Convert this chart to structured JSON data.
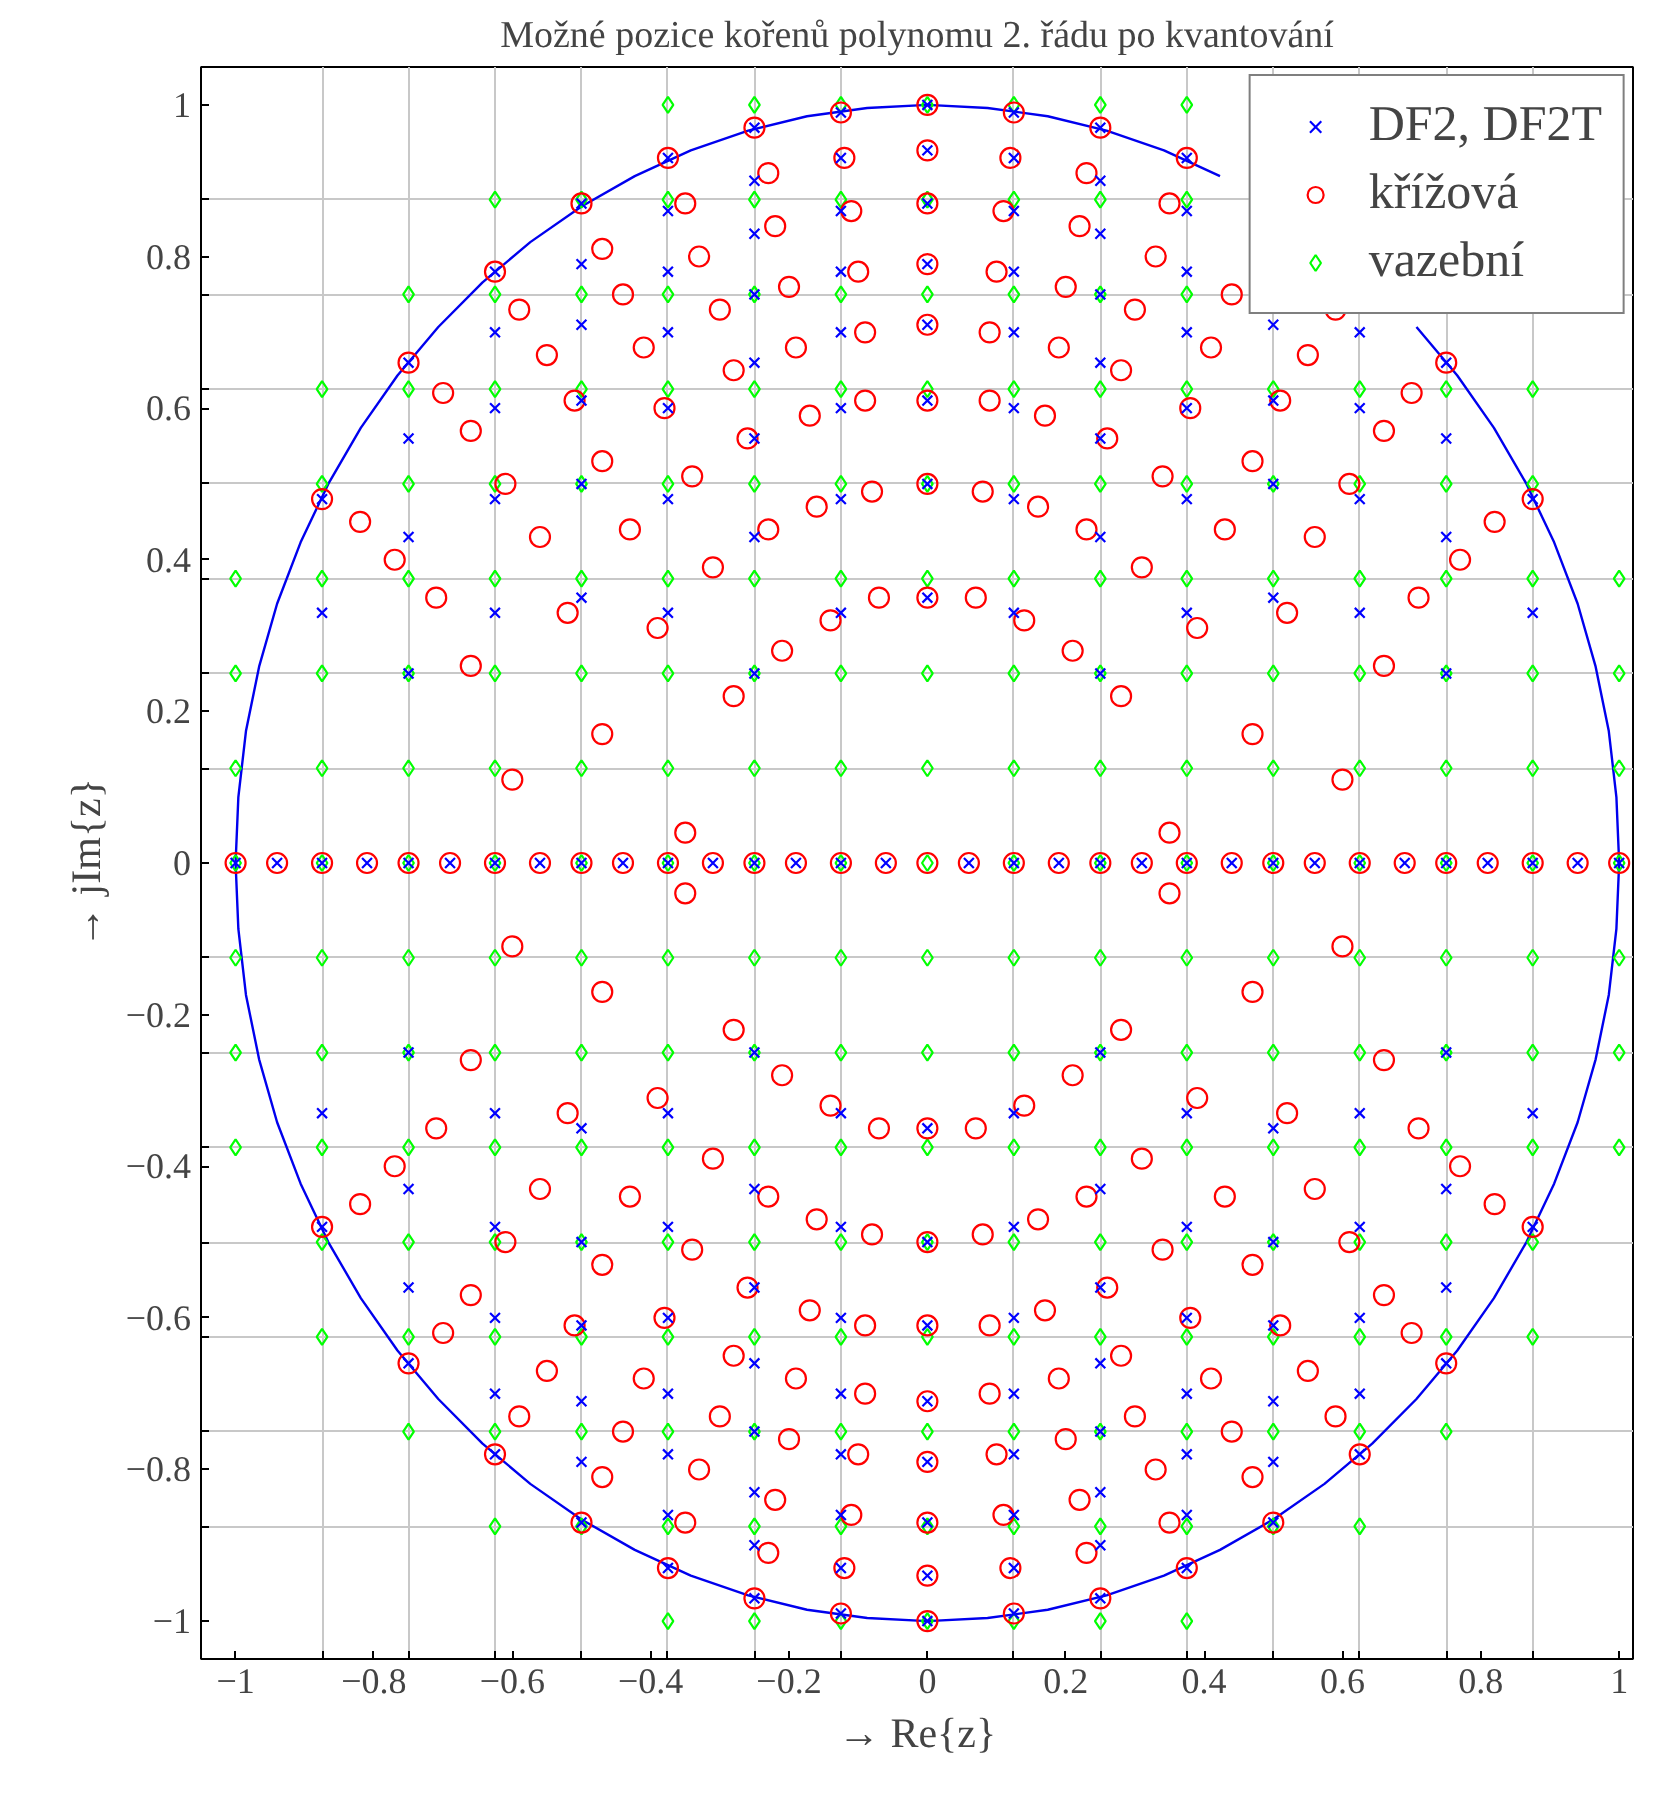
{
  "chart_data": {
    "type": "scatter",
    "title": "Možné pozice kořenů polynomu 2. řádu po kvantování",
    "xlabel": "→ Re{z}",
    "ylabel": "→ jIm{z}",
    "xlim": [
      -1.05,
      1.02
    ],
    "ylim": [
      -1.05,
      1.05
    ],
    "xticks": [
      {
        "value": -1,
        "label": "−1"
      },
      {
        "value": -0.8,
        "label": "−0.8"
      },
      {
        "value": -0.6,
        "label": "−0.6"
      },
      {
        "value": -0.4,
        "label": "−0.4"
      },
      {
        "value": -0.2,
        "label": "−0.2"
      },
      0,
      0.2,
      0.4,
      0.6,
      0.8,
      1,
      {
        "value": -0.875,
        "label": null
      },
      {
        "value": -0.75,
        "label": null
      },
      {
        "value": -0.625,
        "label": null
      },
      {
        "value": -0.5,
        "label": null
      },
      {
        "value": -0.375,
        "label": null
      },
      {
        "value": -0.25,
        "label": null
      },
      {
        "value": -0.125,
        "label": null
      },
      {
        "value": 0.125,
        "label": null
      },
      {
        "value": 0.25,
        "label": null
      },
      {
        "value": 0.375,
        "label": null
      },
      {
        "value": 0.5,
        "label": null
      },
      {
        "value": 0.625,
        "label": null
      },
      {
        "value": 0.75,
        "label": null
      },
      {
        "value": 0.875,
        "label": null
      }
    ],
    "yticks": [
      {
        "value": -1,
        "label": "−1"
      },
      {
        "value": -0.8,
        "label": "−0.8"
      },
      {
        "value": -0.6,
        "label": "−0.6"
      },
      {
        "value": -0.4,
        "label": "−0.4"
      },
      {
        "value": -0.2,
        "label": "−0.2"
      },
      0,
      0.2,
      0.4,
      0.6,
      0.8,
      1,
      {
        "value": -0.875,
        "label": null
      },
      {
        "value": -0.75,
        "label": null
      },
      {
        "value": -0.625,
        "label": null
      },
      {
        "value": -0.5,
        "label": null
      },
      {
        "value": -0.375,
        "label": null
      },
      {
        "value": -0.25,
        "label": null
      },
      {
        "value": -0.125,
        "label": null
      },
      {
        "value": 0.125,
        "label": null
      },
      {
        "value": 0.25,
        "label": null
      },
      {
        "value": 0.375,
        "label": null
      },
      {
        "value": 0.5,
        "label": null
      },
      {
        "value": 0.625,
        "label": null
      },
      {
        "value": 0.75,
        "label": null
      },
      {
        "value": 0.875,
        "label": null
      }
    ],
    "grid": true,
    "legend": "top right",
    "series": [
      {
        "type": "line",
        "color": "#0000ee",
        "marker": "none",
        "x": [
          -1,
          -0.996,
          -0.985,
          -0.966,
          -0.94,
          -0.906,
          -0.866,
          -0.819,
          -0.766,
          -0.707,
          -0.643,
          -0.574,
          -0.5,
          -0.423,
          -0.342,
          -0.259,
          -0.174,
          -0.087,
          0,
          0.087,
          0.174,
          0.259,
          0.342,
          0.423,
          0.5,
          0.574,
          0.643,
          0.707,
          0.766,
          0.819,
          0.866,
          0.906,
          0.94,
          0.966,
          0.985,
          0.996,
          1,
          0.996,
          0.985,
          0.966,
          0.94,
          0.906,
          0.866,
          0.819,
          0.766,
          0.707,
          0.643,
          0.574,
          0.5,
          0.423,
          0.342,
          0.259,
          0.174,
          0.087,
          0,
          -0.087,
          -0.174,
          -0.259,
          -0.342,
          -0.423,
          -0.5,
          -0.574,
          -0.643,
          -0.707,
          -0.766,
          -0.819,
          -0.866,
          -0.906,
          -0.94,
          -0.966,
          -0.985,
          -0.996,
          -1
        ],
        "values": [
          0,
          0.087,
          0.174,
          0.259,
          0.342,
          0.423,
          0.5,
          0.574,
          0.643,
          0.707,
          0.766,
          0.819,
          0.866,
          0.906,
          0.94,
          0.966,
          0.985,
          0.996,
          1,
          0.996,
          0.985,
          0.966,
          0.94,
          0.906,
          null,
          null,
          null,
          0.707,
          0.643,
          0.574,
          0.5,
          0.423,
          0.342,
          0.259,
          0.174,
          0.087,
          0,
          -0.087,
          -0.174,
          -0.259,
          -0.342,
          -0.423,
          -0.5,
          -0.574,
          -0.643,
          -0.707,
          -0.766,
          -0.819,
          -0.866,
          -0.906,
          -0.94,
          -0.966,
          -0.985,
          -0.996,
          -1,
          -0.996,
          -0.985,
          -0.966,
          -0.94,
          -0.906,
          -0.866,
          -0.819,
          -0.766,
          -0.707,
          -0.643,
          -0.574,
          -0.5,
          -0.423,
          -0.342,
          -0.259,
          -0.174,
          -0.087,
          0
        ]
      },
      {
        "name": "DF2, DF2T",
        "color": "#0000ff",
        "marker": "cross",
        "x": [
          -0.25,
          -0.125,
          0,
          0.125,
          0.25,
          -0.375,
          -0.25,
          -0.125,
          0,
          0.125,
          0.25,
          0.375,
          -0.5,
          -0.375,
          -0.25,
          -0.125,
          0,
          0.125,
          0.25,
          0.375,
          0.5,
          -0.625,
          -0.5,
          -0.375,
          -0.25,
          -0.125,
          0,
          0.125,
          0.25,
          0.375,
          0.5,
          0.625,
          -0.75,
          -0.625,
          -0.5,
          -0.375,
          -0.25,
          -0.125,
          0,
          0.125,
          0.25,
          0.375,
          0.5,
          0.625,
          0.75,
          -0.75,
          -0.625,
          -0.5,
          -0.375,
          -0.25,
          -0.125,
          0,
          0.125,
          0.25,
          0.375,
          0.5,
          0.625,
          0.75,
          -0.875,
          -0.75,
          -0.625,
          -0.5,
          -0.375,
          -0.25,
          -0.125,
          0,
          0.125,
          0.25,
          0.375,
          0.625,
          0.75,
          0.875,
          -0.875,
          -0.75,
          -0.625,
          -0.5,
          -0.375,
          -0.25,
          -0.125,
          0,
          0.125,
          0.25,
          0.375,
          0.75,
          0.875,
          -0.25,
          -0.125,
          0,
          0.125,
          0.25,
          -0.375,
          -0.25,
          -0.125,
          0,
          0.125,
          0.25,
          0.375,
          -0.5,
          -0.375,
          -0.25,
          -0.125,
          0,
          0.125,
          0.25,
          0.375,
          0.5,
          -0.625,
          -0.5,
          -0.375,
          -0.25,
          -0.125,
          0,
          0.125,
          0.25,
          0.375,
          0.5,
          0.625,
          -0.75,
          -0.625,
          -0.5,
          -0.375,
          -0.25,
          -0.125,
          0,
          0.125,
          0.25,
          0.375,
          0.5,
          0.625,
          0.75,
          -0.75,
          -0.625,
          -0.5,
          -0.375,
          -0.25,
          -0.125,
          0,
          0.125,
          0.25,
          0.375,
          0.5,
          0.625,
          0.75,
          -0.875,
          -0.75,
          -0.625,
          -0.5,
          -0.375,
          -0.25,
          -0.125,
          0,
          0.125,
          0.25,
          0.375,
          0.5,
          0.625,
          0.75,
          0.875,
          -0.875,
          -0.75,
          -0.625,
          -0.5,
          -0.375,
          -0.25,
          -0.125,
          0,
          0.125,
          0.25,
          0.375,
          0.5,
          0.625,
          0.75,
          0.875,
          -1,
          -0.94,
          -0.875,
          -0.81,
          -0.75,
          -0.69,
          -0.625,
          -0.56,
          -0.5,
          -0.44,
          -0.375,
          -0.31,
          -0.25,
          -0.19,
          -0.125,
          -0.06,
          0.06,
          0.125,
          0.19,
          0.25,
          0.31,
          0.375,
          0.44,
          0.5,
          0.56,
          0.625,
          0.69,
          0.75,
          0.81,
          0.875,
          0.94,
          1
        ],
        "values": [
          0.25,
          0.33,
          0.35,
          0.33,
          0.25,
          0.33,
          0.43,
          0.48,
          0.5,
          0.48,
          0.43,
          0.33,
          0.35,
          0.48,
          0.56,
          0.6,
          0.61,
          0.6,
          0.56,
          0.48,
          0.35,
          0.33,
          0.5,
          0.6,
          0.66,
          0.7,
          0.71,
          0.7,
          0.66,
          0.6,
          0.5,
          0.33,
          0.25,
          0.48,
          0.61,
          0.7,
          0.75,
          0.78,
          0.79,
          0.78,
          0.75,
          0.7,
          0.61,
          0.48,
          0.25,
          0.43,
          0.6,
          0.71,
          0.78,
          0.83,
          0.86,
          0.87,
          0.86,
          0.83,
          0.78,
          0.71,
          0.6,
          0.43,
          0.33,
          0.56,
          0.7,
          0.79,
          0.86,
          0.9,
          0.93,
          0.94,
          0.93,
          0.9,
          0.86,
          0.7,
          0.56,
          0.33,
          0.48,
          0.66,
          0.78,
          0.87,
          0.93,
          0.97,
          0.99,
          1,
          0.99,
          0.97,
          0.93,
          0.66,
          0.48,
          -0.25,
          -0.33,
          -0.35,
          -0.33,
          -0.25,
          -0.33,
          -0.43,
          -0.48,
          -0.5,
          -0.48,
          -0.43,
          -0.33,
          -0.35,
          -0.48,
          -0.56,
          -0.6,
          -0.61,
          -0.6,
          -0.56,
          -0.48,
          -0.35,
          -0.33,
          -0.5,
          -0.6,
          -0.66,
          -0.7,
          -0.71,
          -0.7,
          -0.66,
          -0.6,
          -0.5,
          -0.33,
          -0.25,
          -0.48,
          -0.61,
          -0.7,
          -0.75,
          -0.78,
          -0.79,
          -0.78,
          -0.75,
          -0.7,
          -0.61,
          -0.48,
          -0.25,
          -0.43,
          -0.6,
          -0.71,
          -0.78,
          -0.83,
          -0.86,
          -0.87,
          -0.86,
          -0.83,
          -0.78,
          -0.71,
          -0.6,
          -0.43,
          -0.33,
          -0.56,
          -0.7,
          -0.79,
          -0.86,
          -0.9,
          -0.93,
          -0.94,
          -0.93,
          -0.9,
          -0.86,
          -0.79,
          -0.7,
          -0.56,
          -0.33,
          -0.48,
          -0.66,
          -0.78,
          -0.87,
          -0.93,
          -0.97,
          -0.99,
          -1,
          -0.99,
          -0.97,
          -0.93,
          -0.87,
          -0.78,
          -0.66,
          -0.48,
          0,
          0,
          0,
          0,
          0,
          0,
          0,
          0,
          0,
          0,
          0,
          0,
          0,
          0,
          0,
          0,
          0,
          0,
          0,
          0,
          0,
          0,
          0,
          0,
          0,
          0,
          0,
          0,
          0,
          0,
          0,
          0
        ]
      },
      {
        "name": "křížová",
        "color": "#ff0000",
        "marker": "circle",
        "x": [
          -0.35,
          -0.28,
          -0.21,
          -0.14,
          -0.07,
          0,
          0.07,
          0.14,
          0.21,
          0.28,
          0.35,
          -0.47,
          -0.39,
          -0.31,
          -0.23,
          -0.16,
          -0.08,
          0,
          0.08,
          0.16,
          0.23,
          0.31,
          0.39,
          0.47,
          -0.6,
          -0.52,
          -0.43,
          -0.34,
          -0.26,
          -0.17,
          -0.09,
          0,
          0.09,
          0.17,
          0.26,
          0.34,
          0.43,
          0.52,
          0.6,
          -0.66,
          -0.56,
          -0.47,
          -0.38,
          -0.28,
          -0.19,
          -0.09,
          0,
          0.09,
          0.19,
          0.28,
          0.38,
          0.47,
          0.56,
          0.66,
          -0.71,
          -0.61,
          -0.51,
          -0.41,
          -0.3,
          -0.2,
          -0.1,
          0,
          0.1,
          0.2,
          0.3,
          0.41,
          0.51,
          0.61,
          0.71,
          -0.77,
          -0.66,
          -0.55,
          -0.44,
          -0.33,
          -0.22,
          -0.11,
          0,
          0.11,
          0.22,
          0.33,
          0.44,
          0.55,
          0.66,
          0.77,
          -0.82,
          -0.7,
          -0.59,
          -0.47,
          -0.35,
          -0.23,
          -0.12,
          0,
          0.12,
          0.23,
          0.35,
          0.59,
          0.7,
          0.82,
          -0.875,
          -0.75,
          -0.625,
          -0.5,
          -0.375,
          -0.25,
          -0.125,
          0,
          0.125,
          0.25,
          0.375,
          0.75,
          0.875,
          -0.35,
          -0.28,
          -0.21,
          -0.14,
          -0.07,
          0,
          0.07,
          0.14,
          0.21,
          0.28,
          0.35,
          -0.47,
          -0.39,
          -0.31,
          -0.23,
          -0.16,
          -0.08,
          0,
          0.08,
          0.16,
          0.23,
          0.31,
          0.39,
          0.47,
          -0.6,
          -0.52,
          -0.43,
          -0.34,
          -0.26,
          -0.17,
          -0.09,
          0,
          0.09,
          0.17,
          0.26,
          0.34,
          0.43,
          0.52,
          0.6,
          -0.66,
          -0.56,
          -0.47,
          -0.38,
          -0.28,
          -0.19,
          -0.09,
          0,
          0.09,
          0.19,
          0.28,
          0.38,
          0.47,
          0.56,
          0.66,
          -0.71,
          -0.61,
          -0.51,
          -0.41,
          -0.3,
          -0.2,
          -0.1,
          0,
          0.1,
          0.2,
          0.3,
          0.41,
          0.51,
          0.61,
          0.71,
          -0.77,
          -0.66,
          -0.55,
          -0.44,
          -0.33,
          -0.22,
          -0.11,
          0,
          0.11,
          0.22,
          0.33,
          0.44,
          0.55,
          0.66,
          0.77,
          -0.82,
          -0.7,
          -0.59,
          -0.47,
          -0.35,
          -0.23,
          -0.12,
          0,
          0.12,
          0.23,
          0.35,
          0.47,
          0.59,
          0.7,
          0.82,
          -0.875,
          -0.75,
          -0.625,
          -0.5,
          -0.375,
          -0.25,
          -0.125,
          0,
          0.125,
          0.25,
          0.375,
          0.5,
          0.625,
          0.75,
          0.875,
          -1,
          -0.94,
          -0.875,
          -0.81,
          -0.75,
          -0.69,
          -0.625,
          -0.56,
          -0.5,
          -0.44,
          -0.375,
          -0.31,
          -0.25,
          -0.19,
          -0.125,
          -0.06,
          0,
          0.06,
          0.125,
          0.19,
          0.25,
          0.31,
          0.375,
          0.44,
          0.5,
          0.56,
          0.625,
          0.69,
          0.75,
          0.81,
          0.875,
          0.94,
          1
        ],
        "values": [
          0.04,
          0.22,
          0.28,
          0.32,
          0.35,
          0.35,
          0.35,
          0.32,
          0.28,
          0.22,
          0.04,
          0.17,
          0.31,
          0.39,
          0.44,
          0.47,
          0.49,
          0.5,
          0.49,
          0.47,
          0.44,
          0.39,
          0.31,
          0.17,
          0.11,
          0.33,
          0.44,
          0.51,
          0.56,
          0.59,
          0.61,
          0.61,
          0.61,
          0.59,
          0.56,
          0.51,
          0.44,
          0.33,
          0.11,
          0.26,
          0.43,
          0.53,
          0.6,
          0.65,
          0.68,
          0.7,
          0.71,
          0.7,
          0.68,
          0.65,
          0.6,
          0.53,
          0.43,
          0.26,
          0.35,
          0.5,
          0.61,
          0.68,
          0.73,
          0.76,
          0.78,
          0.79,
          0.78,
          0.76,
          0.73,
          0.68,
          0.61,
          0.5,
          0.35,
          0.4,
          0.57,
          0.67,
          0.75,
          0.8,
          0.84,
          0.86,
          0.87,
          0.86,
          0.84,
          0.8,
          0.75,
          0.67,
          0.57,
          0.4,
          0.45,
          0.62,
          0.73,
          0.81,
          0.87,
          0.91,
          0.93,
          0.94,
          0.93,
          0.91,
          0.87,
          0.73,
          0.62,
          0.45,
          0.48,
          0.66,
          0.78,
          0.87,
          0.93,
          0.97,
          0.99,
          1,
          0.99,
          0.97,
          0.93,
          0.66,
          0.48,
          -0.04,
          -0.22,
          -0.28,
          -0.32,
          -0.35,
          -0.35,
          -0.35,
          -0.32,
          -0.28,
          -0.22,
          -0.04,
          -0.17,
          -0.31,
          -0.39,
          -0.44,
          -0.47,
          -0.49,
          -0.5,
          -0.49,
          -0.47,
          -0.44,
          -0.39,
          -0.31,
          -0.17,
          -0.11,
          -0.33,
          -0.44,
          -0.51,
          -0.56,
          -0.59,
          -0.61,
          -0.61,
          -0.61,
          -0.59,
          -0.56,
          -0.51,
          -0.44,
          -0.33,
          -0.11,
          -0.26,
          -0.43,
          -0.53,
          -0.6,
          -0.65,
          -0.68,
          -0.7,
          -0.71,
          -0.7,
          -0.68,
          -0.65,
          -0.6,
          -0.53,
          -0.43,
          -0.26,
          -0.35,
          -0.5,
          -0.61,
          -0.68,
          -0.73,
          -0.76,
          -0.78,
          -0.79,
          -0.78,
          -0.76,
          -0.73,
          -0.68,
          -0.61,
          -0.5,
          -0.35,
          -0.4,
          -0.57,
          -0.67,
          -0.75,
          -0.8,
          -0.84,
          -0.86,
          -0.87,
          -0.86,
          -0.84,
          -0.8,
          -0.75,
          -0.67,
          -0.57,
          -0.4,
          -0.45,
          -0.62,
          -0.73,
          -0.81,
          -0.87,
          -0.91,
          -0.93,
          -0.94,
          -0.93,
          -0.91,
          -0.87,
          -0.81,
          -0.73,
          -0.62,
          -0.45,
          -0.48,
          -0.66,
          -0.78,
          -0.87,
          -0.93,
          -0.97,
          -0.99,
          -1,
          -0.99,
          -0.97,
          -0.93,
          -0.87,
          -0.78,
          -0.66,
          -0.48,
          0,
          0,
          0,
          0,
          0,
          0,
          0,
          0,
          0,
          0,
          0,
          0,
          0,
          0,
          0,
          0,
          0,
          0,
          0,
          0,
          0,
          0,
          0,
          0,
          0,
          0,
          0,
          0,
          0,
          0,
          0,
          0,
          0
        ]
      },
      {
        "name": "vazební",
        "color": "#00ff00",
        "marker": "diamond",
        "x": [
          -1,
          -0.875,
          -0.75,
          -0.625,
          -0.5,
          -0.375,
          -0.25,
          -0.125,
          0,
          0.125,
          0.25,
          0.375,
          0.5,
          0.625,
          0.75,
          0.875,
          1,
          -1,
          -0.875,
          -0.75,
          -0.625,
          -0.5,
          -0.375,
          -0.25,
          -0.125,
          0,
          0.125,
          0.25,
          0.375,
          0.5,
          0.625,
          0.75,
          0.875,
          1,
          -1,
          -0.875,
          -0.75,
          -0.625,
          -0.5,
          -0.375,
          -0.25,
          -0.125,
          0,
          0.125,
          0.25,
          0.375,
          0.5,
          0.625,
          0.75,
          0.875,
          1,
          -0.875,
          -0.75,
          -0.625,
          -0.5,
          -0.375,
          -0.25,
          -0.125,
          0,
          0.125,
          0.25,
          0.375,
          0.5,
          0.625,
          0.75,
          0.875,
          -0.875,
          -0.75,
          -0.625,
          -0.5,
          -0.375,
          -0.25,
          -0.125,
          0,
          0.125,
          0.25,
          0.375,
          0.5,
          0.625,
          0.75,
          0.875,
          -0.75,
          -0.625,
          -0.5,
          -0.375,
          -0.25,
          -0.125,
          0,
          0.125,
          0.25,
          0.375,
          -0.625,
          -0.5,
          -0.375,
          -0.25,
          -0.125,
          0,
          0.125,
          0.25,
          0.375,
          -0.375,
          -0.25,
          -0.125,
          0,
          0.125,
          0.25,
          0.375,
          -1,
          -0.875,
          -0.75,
          -0.625,
          -0.5,
          -0.375,
          -0.25,
          -0.125,
          0,
          0.125,
          0.25,
          0.375,
          0.5,
          0.625,
          0.75,
          0.875,
          1,
          -1,
          -0.875,
          -0.75,
          -0.625,
          -0.5,
          -0.375,
          -0.25,
          -0.125,
          0,
          0.125,
          0.25,
          0.375,
          0.5,
          0.625,
          0.75,
          0.875,
          1,
          -1,
          -0.875,
          -0.75,
          -0.625,
          -0.5,
          -0.375,
          -0.25,
          -0.125,
          0,
          0.125,
          0.25,
          0.375,
          0.5,
          0.625,
          0.75,
          0.875,
          1,
          -0.875,
          -0.75,
          -0.625,
          -0.5,
          -0.375,
          -0.25,
          -0.125,
          0,
          0.125,
          0.25,
          0.375,
          0.5,
          0.625,
          0.75,
          0.875,
          -0.875,
          -0.75,
          -0.625,
          -0.5,
          -0.375,
          -0.25,
          -0.125,
          0,
          0.125,
          0.25,
          0.375,
          0.5,
          0.625,
          0.75,
          0.875,
          -0.75,
          -0.625,
          -0.5,
          -0.375,
          -0.25,
          -0.125,
          0,
          0.125,
          0.25,
          0.375,
          0.5,
          0.625,
          0.75,
          -0.625,
          -0.5,
          -0.375,
          -0.25,
          -0.125,
          0,
          0.125,
          0.25,
          0.375,
          0.5,
          0.625,
          -0.375,
          -0.25,
          -0.125,
          0,
          0.125,
          0.25,
          0.375,
          -1,
          -0.875,
          -0.75,
          -0.625,
          -0.5,
          -0.375,
          -0.25,
          -0.125,
          0,
          0.125,
          0.25,
          0.375,
          0.5,
          0.625,
          0.75,
          0.875,
          1
        ],
        "values": [
          0.125,
          0.125,
          0.125,
          0.125,
          0.125,
          0.125,
          0.125,
          0.125,
          0.125,
          0.125,
          0.125,
          0.125,
          0.125,
          0.125,
          0.125,
          0.125,
          0.125,
          0.25,
          0.25,
          0.25,
          0.25,
          0.25,
          0.25,
          0.25,
          0.25,
          0.25,
          0.25,
          0.25,
          0.25,
          0.25,
          0.25,
          0.25,
          0.25,
          0.25,
          0.375,
          0.375,
          0.375,
          0.375,
          0.375,
          0.375,
          0.375,
          0.375,
          0.375,
          0.375,
          0.375,
          0.375,
          0.375,
          0.375,
          0.375,
          0.375,
          0.375,
          0.5,
          0.5,
          0.5,
          0.5,
          0.5,
          0.5,
          0.5,
          0.5,
          0.5,
          0.5,
          0.5,
          0.5,
          0.5,
          0.5,
          0.5,
          0.625,
          0.625,
          0.625,
          0.625,
          0.625,
          0.625,
          0.625,
          0.625,
          0.625,
          0.625,
          0.625,
          0.625,
          0.625,
          0.625,
          0.625,
          0.75,
          0.75,
          0.75,
          0.75,
          0.75,
          0.75,
          0.75,
          0.75,
          0.75,
          0.75,
          0.875,
          0.875,
          0.875,
          0.875,
          0.875,
          0.875,
          0.875,
          0.875,
          0.875,
          1,
          1,
          1,
          1,
          1,
          1,
          1,
          -0.125,
          -0.125,
          -0.125,
          -0.125,
          -0.125,
          -0.125,
          -0.125,
          -0.125,
          -0.125,
          -0.125,
          -0.125,
          -0.125,
          -0.125,
          -0.125,
          -0.125,
          -0.125,
          -0.125,
          -0.25,
          -0.25,
          -0.25,
          -0.25,
          -0.25,
          -0.25,
          -0.25,
          -0.25,
          -0.25,
          -0.25,
          -0.25,
          -0.25,
          -0.25,
          -0.25,
          -0.25,
          -0.25,
          -0.25,
          -0.375,
          -0.375,
          -0.375,
          -0.375,
          -0.375,
          -0.375,
          -0.375,
          -0.375,
          -0.375,
          -0.375,
          -0.375,
          -0.375,
          -0.375,
          -0.375,
          -0.375,
          -0.375,
          -0.375,
          -0.5,
          -0.5,
          -0.5,
          -0.5,
          -0.5,
          -0.5,
          -0.5,
          -0.5,
          -0.5,
          -0.5,
          -0.5,
          -0.5,
          -0.5,
          -0.5,
          -0.5,
          -0.625,
          -0.625,
          -0.625,
          -0.625,
          -0.625,
          -0.625,
          -0.625,
          -0.625,
          -0.625,
          -0.625,
          -0.625,
          -0.625,
          -0.625,
          -0.625,
          -0.625,
          -0.75,
          -0.75,
          -0.75,
          -0.75,
          -0.75,
          -0.75,
          -0.75,
          -0.75,
          -0.75,
          -0.75,
          -0.75,
          -0.75,
          -0.75,
          -0.875,
          -0.875,
          -0.875,
          -0.875,
          -0.875,
          -0.875,
          -0.875,
          -0.875,
          -0.875,
          -0.875,
          -0.875,
          -1,
          -1,
          -1,
          -1,
          -1,
          -1,
          -1,
          0,
          0,
          0,
          0,
          0,
          0,
          0,
          0,
          0,
          0,
          0,
          0,
          0,
          0,
          0,
          0,
          0
        ]
      }
    ]
  }
}
